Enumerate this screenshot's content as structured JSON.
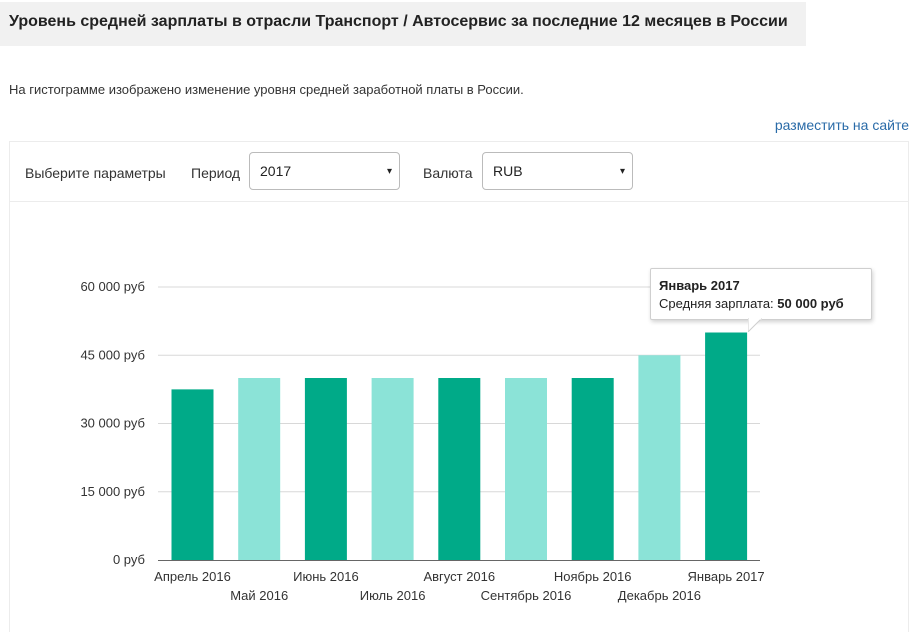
{
  "page": {
    "title": "Уровень средней зарплаты в отрасли Транспорт / Автосервис за последние 12 месяцев в России",
    "description": "На гистограмме изображено изменение уровня средней заработной платы в России.",
    "embed_link": "разместить на сайте"
  },
  "controls": {
    "params_label": "Выберите параметры",
    "period_label": "Период",
    "period_value": "2017",
    "currency_label": "Валюта",
    "currency_value": "RUB",
    "dropdown_arrow": "▾"
  },
  "tooltip": {
    "title": "Январь 2017",
    "label": "Средняя зарплата:",
    "value": "50 000 руб"
  },
  "colors": {
    "dark": "#00aa88",
    "light": "#8be3d7"
  },
  "chart_data": {
    "type": "bar",
    "categories": [
      "Апрель 2016",
      "Май 2016",
      "Июнь 2016",
      "Июль 2016",
      "Август 2016",
      "Сентябрь 2016",
      "Ноябрь 2016",
      "Декабрь 2016",
      "Январь 2017"
    ],
    "values": [
      37500,
      40000,
      40000,
      40000,
      40000,
      40000,
      40000,
      45000,
      50000
    ],
    "ylim": [
      0,
      60000
    ],
    "yticks": [
      0,
      15000,
      30000,
      45000,
      60000
    ],
    "ytick_labels": [
      "0 руб",
      "15 000 руб",
      "30 000 руб",
      "45 000 руб",
      "60 000 руб"
    ],
    "grid": true,
    "bar_colors": [
      "#00aa88",
      "#8be3d7",
      "#00aa88",
      "#8be3d7",
      "#00aa88",
      "#8be3d7",
      "#00aa88",
      "#8be3d7",
      "#00aa88"
    ]
  }
}
